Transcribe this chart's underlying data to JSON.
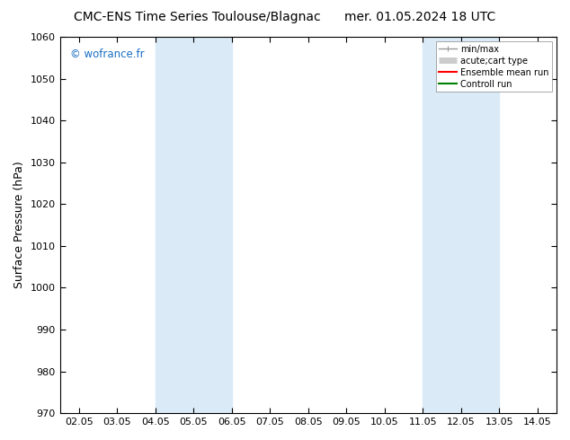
{
  "title_left": "CMC-ENS Time Series Toulouse/Blagnac",
  "title_right": "mer. 01.05.2024 18 UTC",
  "ylabel": "Surface Pressure (hPa)",
  "ylim": [
    970,
    1060
  ],
  "yticks": [
    970,
    980,
    990,
    1000,
    1010,
    1020,
    1030,
    1040,
    1050,
    1060
  ],
  "xtick_labels": [
    "02.05",
    "03.05",
    "04.05",
    "05.05",
    "06.05",
    "07.05",
    "08.05",
    "09.05",
    "10.05",
    "11.05",
    "12.05",
    "13.05",
    "14.05"
  ],
  "xtick_positions": [
    0,
    1,
    2,
    3,
    4,
    5,
    6,
    7,
    8,
    9,
    10,
    11,
    12
  ],
  "xlim": [
    -0.5,
    12.5
  ],
  "shaded_bands": [
    {
      "x_start": 2,
      "x_end": 4,
      "color": "#daeaf7"
    },
    {
      "x_start": 9,
      "x_end": 11,
      "color": "#daeaf7"
    }
  ],
  "watermark": "© wofrance.fr",
  "watermark_color": "#1a6fc4",
  "legend_entries": [
    {
      "label": "min/max",
      "color": "#999999",
      "lw": 1.0
    },
    {
      "label": "acute;cart type",
      "color": "#cccccc",
      "lw": 5
    },
    {
      "label": "Ensemble mean run",
      "color": "#ff0000",
      "lw": 1.5
    },
    {
      "label": "Controll run",
      "color": "#008000",
      "lw": 1.5
    }
  ],
  "background_color": "#ffffff",
  "title_fontsize": 10,
  "axis_label_fontsize": 9,
  "tick_fontsize": 8
}
